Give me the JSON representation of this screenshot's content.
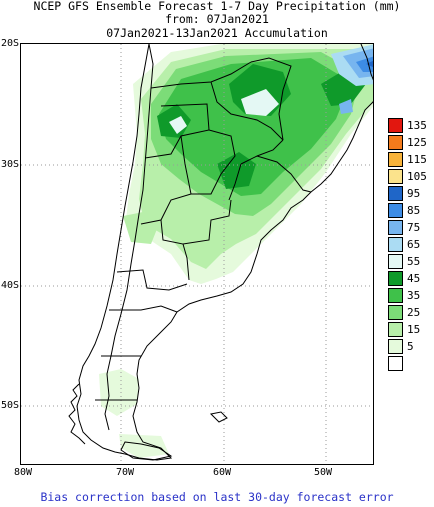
{
  "title": {
    "line1": "NCEP GFS Ensemble Forecast 1-7 Day Precipitation (mm)",
    "line2": "from: 07Jan2021",
    "line3": "07Jan2021-13Jan2021 Accumulation"
  },
  "map": {
    "region": "Southern South America (Argentina, Chile, Uruguay, Paraguay, southern Brazil)",
    "lat_labels": [
      "20S",
      "30S",
      "40S",
      "50S"
    ],
    "lon_labels": [
      "80W",
      "70W",
      "60W",
      "50W"
    ]
  },
  "legend": {
    "units": "mm",
    "levels": [
      {
        "label": "135",
        "color": "#e2170f"
      },
      {
        "label": "125",
        "color": "#f47b1c"
      },
      {
        "label": "115",
        "color": "#f8b33a"
      },
      {
        "label": "105",
        "color": "#fbe38c"
      },
      {
        "label": "95",
        "color": "#1f66c8"
      },
      {
        "label": "85",
        "color": "#3d8ce5"
      },
      {
        "label": "75",
        "color": "#77b5ef"
      },
      {
        "label": "65",
        "color": "#abdcf3"
      },
      {
        "label": "55",
        "color": "#e4f8f4"
      },
      {
        "label": "45",
        "color": "#0f9a2a"
      },
      {
        "label": "35",
        "color": "#3fc14a"
      },
      {
        "label": "25",
        "color": "#7cdc78"
      },
      {
        "label": "15",
        "color": "#b8efaa"
      },
      {
        "label": "5",
        "color": "#e5fadc"
      },
      {
        "label": "",
        "color": "#ffffff"
      }
    ]
  },
  "footer": {
    "bias_note": "Bias correction based on last 30-day forecast error"
  }
}
